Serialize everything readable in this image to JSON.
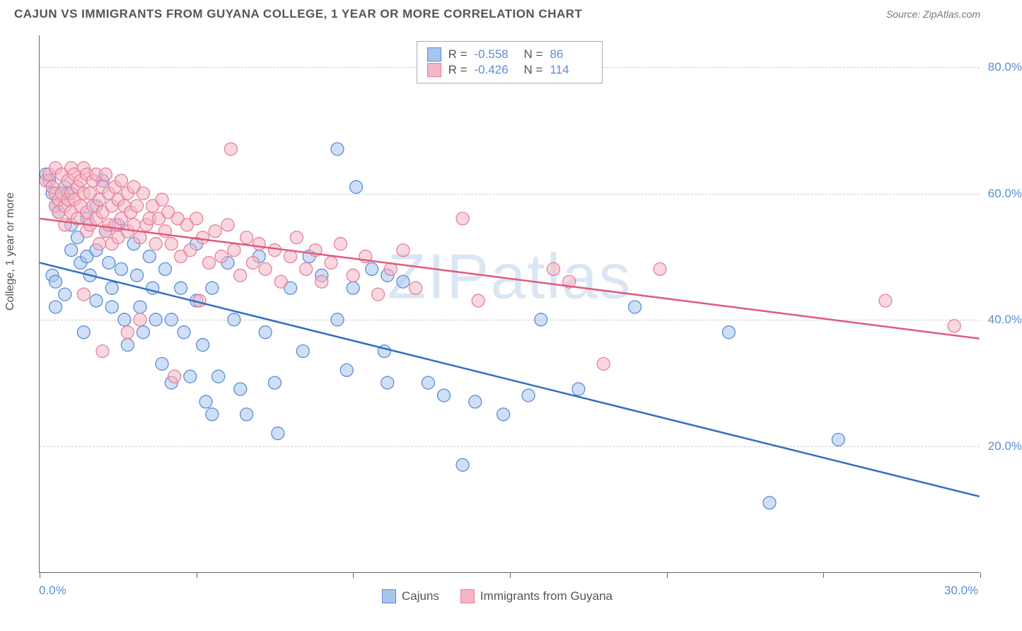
{
  "header": {
    "title": "CAJUN VS IMMIGRANTS FROM GUYANA COLLEGE, 1 YEAR OR MORE CORRELATION CHART",
    "source_prefix": "Source: ",
    "source": "ZipAtlas.com"
  },
  "chart": {
    "type": "scatter",
    "watermark": "ZIPatlas",
    "y_axis_label": "College, 1 year or more",
    "xlim": [
      0,
      30
    ],
    "ylim": [
      0,
      85
    ],
    "x_ticks": [
      0,
      5,
      10,
      15,
      20,
      25,
      30
    ],
    "x_tick_labels": {
      "0": "0.0%",
      "30": "30.0%"
    },
    "y_gridlines": [
      20,
      40,
      60,
      80
    ],
    "y_tick_labels": {
      "20": "20.0%",
      "40": "40.0%",
      "60": "60.0%",
      "80": "80.0%"
    },
    "grid_color": "#cccccc",
    "axis_color": "#666666",
    "background_color": "#ffffff",
    "series": [
      {
        "name": "Cajuns",
        "fill": "#a7c5ec",
        "stroke": "#5b8dd6",
        "fill_opacity": 0.55,
        "marker_radius": 9,
        "trend": {
          "x1": 0,
          "y1": 49,
          "x2": 30,
          "y2": 12,
          "color": "#2f6fc0",
          "width": 2.5
        },
        "R": "-0.558",
        "N": "86",
        "points": [
          [
            0.2,
            63
          ],
          [
            0.3,
            62
          ],
          [
            0.4,
            60
          ],
          [
            0.5,
            58
          ],
          [
            0.6,
            57
          ],
          [
            0.4,
            47
          ],
          [
            0.5,
            46
          ],
          [
            0.5,
            42
          ],
          [
            0.8,
            61
          ],
          [
            0.9,
            60
          ],
          [
            1.0,
            55
          ],
          [
            1.0,
            51
          ],
          [
            0.8,
            44
          ],
          [
            1.2,
            53
          ],
          [
            1.3,
            49
          ],
          [
            1.5,
            56
          ],
          [
            1.5,
            50
          ],
          [
            1.6,
            47
          ],
          [
            1.8,
            58
          ],
          [
            1.8,
            51
          ],
          [
            1.8,
            43
          ],
          [
            1.4,
            38
          ],
          [
            2.0,
            62
          ],
          [
            2.1,
            54
          ],
          [
            2.2,
            49
          ],
          [
            2.3,
            45
          ],
          [
            2.3,
            42
          ],
          [
            2.5,
            55
          ],
          [
            2.6,
            48
          ],
          [
            2.7,
            40
          ],
          [
            2.8,
            36
          ],
          [
            3.0,
            52
          ],
          [
            3.1,
            47
          ],
          [
            3.2,
            42
          ],
          [
            3.3,
            38
          ],
          [
            3.5,
            50
          ],
          [
            3.6,
            45
          ],
          [
            3.7,
            40
          ],
          [
            3.9,
            33
          ],
          [
            4.0,
            48
          ],
          [
            4.2,
            40
          ],
          [
            4.2,
            30
          ],
          [
            4.5,
            45
          ],
          [
            4.6,
            38
          ],
          [
            4.8,
            31
          ],
          [
            5.0,
            52
          ],
          [
            5.0,
            43
          ],
          [
            5.2,
            36
          ],
          [
            5.3,
            27
          ],
          [
            5.5,
            45
          ],
          [
            5.7,
            31
          ],
          [
            5.5,
            25
          ],
          [
            6.0,
            49
          ],
          [
            6.2,
            40
          ],
          [
            6.4,
            29
          ],
          [
            6.6,
            25
          ],
          [
            7.0,
            50
          ],
          [
            7.2,
            38
          ],
          [
            7.5,
            30
          ],
          [
            7.6,
            22
          ],
          [
            8.0,
            45
          ],
          [
            8.4,
            35
          ],
          [
            8.6,
            50
          ],
          [
            9.0,
            47
          ],
          [
            9.5,
            40
          ],
          [
            9.8,
            32
          ],
          [
            10.1,
            61
          ],
          [
            10.0,
            45
          ],
          [
            10.6,
            48
          ],
          [
            11.0,
            35
          ],
          [
            11.1,
            47
          ],
          [
            11.6,
            46
          ],
          [
            11.1,
            30
          ],
          [
            12.4,
            30
          ],
          [
            12.9,
            28
          ],
          [
            13.5,
            17
          ],
          [
            13.9,
            27
          ],
          [
            14.8,
            25
          ],
          [
            15.6,
            28
          ],
          [
            16.0,
            40
          ],
          [
            17.2,
            29
          ],
          [
            19.0,
            42
          ],
          [
            22.0,
            38
          ],
          [
            23.3,
            11
          ],
          [
            25.5,
            21
          ],
          [
            9.5,
            67
          ]
        ]
      },
      {
        "name": "Immigrants from Guyana",
        "fill": "#f4b6c4",
        "stroke": "#e77f9a",
        "fill_opacity": 0.55,
        "marker_radius": 9,
        "trend": {
          "x1": 0,
          "y1": 56,
          "x2": 30,
          "y2": 37,
          "color": "#e05a7d",
          "width": 2.5
        },
        "R": "-0.426",
        "N": "114",
        "points": [
          [
            0.2,
            62
          ],
          [
            0.3,
            63
          ],
          [
            0.4,
            61
          ],
          [
            0.5,
            60
          ],
          [
            0.5,
            58
          ],
          [
            0.5,
            64
          ],
          [
            0.6,
            59
          ],
          [
            0.6,
            57
          ],
          [
            0.7,
            63
          ],
          [
            0.7,
            60
          ],
          [
            0.8,
            58
          ],
          [
            0.8,
            55
          ],
          [
            0.9,
            62
          ],
          [
            0.9,
            59
          ],
          [
            1.0,
            64
          ],
          [
            1.0,
            60
          ],
          [
            1.0,
            57
          ],
          [
            1.1,
            63
          ],
          [
            1.1,
            59
          ],
          [
            1.2,
            61
          ],
          [
            1.2,
            56
          ],
          [
            1.3,
            62
          ],
          [
            1.3,
            58
          ],
          [
            1.4,
            64
          ],
          [
            1.4,
            60
          ],
          [
            1.5,
            63
          ],
          [
            1.5,
            57
          ],
          [
            1.5,
            54
          ],
          [
            1.6,
            60
          ],
          [
            1.6,
            55
          ],
          [
            1.7,
            62
          ],
          [
            1.7,
            58
          ],
          [
            1.8,
            63
          ],
          [
            1.8,
            56
          ],
          [
            1.9,
            59
          ],
          [
            1.9,
            52
          ],
          [
            2.0,
            61
          ],
          [
            2.0,
            57
          ],
          [
            2.1,
            63
          ],
          [
            2.1,
            54
          ],
          [
            2.2,
            60
          ],
          [
            2.2,
            55
          ],
          [
            2.3,
            58
          ],
          [
            2.3,
            52
          ],
          [
            2.4,
            61
          ],
          [
            2.4,
            55
          ],
          [
            2.5,
            59
          ],
          [
            2.5,
            53
          ],
          [
            2.6,
            62
          ],
          [
            2.6,
            56
          ],
          [
            2.7,
            58
          ],
          [
            2.8,
            60
          ],
          [
            2.8,
            54
          ],
          [
            2.9,
            57
          ],
          [
            3.0,
            61
          ],
          [
            3.0,
            55
          ],
          [
            3.1,
            58
          ],
          [
            3.2,
            53
          ],
          [
            3.3,
            60
          ],
          [
            3.4,
            55
          ],
          [
            3.5,
            56
          ],
          [
            3.6,
            58
          ],
          [
            3.7,
            52
          ],
          [
            3.8,
            56
          ],
          [
            3.9,
            59
          ],
          [
            4.0,
            54
          ],
          [
            4.1,
            57
          ],
          [
            4.2,
            52
          ],
          [
            4.4,
            56
          ],
          [
            4.5,
            50
          ],
          [
            4.7,
            55
          ],
          [
            4.8,
            51
          ],
          [
            5.0,
            56
          ],
          [
            5.2,
            53
          ],
          [
            5.4,
            49
          ],
          [
            5.6,
            54
          ],
          [
            5.8,
            50
          ],
          [
            6.0,
            55
          ],
          [
            6.2,
            51
          ],
          [
            6.4,
            47
          ],
          [
            6.1,
            67
          ],
          [
            6.6,
            53
          ],
          [
            6.8,
            49
          ],
          [
            7.0,
            52
          ],
          [
            7.2,
            48
          ],
          [
            7.5,
            51
          ],
          [
            7.7,
            46
          ],
          [
            8.0,
            50
          ],
          [
            8.2,
            53
          ],
          [
            8.5,
            48
          ],
          [
            8.8,
            51
          ],
          [
            9.0,
            46
          ],
          [
            9.3,
            49
          ],
          [
            9.6,
            52
          ],
          [
            10.0,
            47
          ],
          [
            10.4,
            50
          ],
          [
            10.8,
            44
          ],
          [
            11.2,
            48
          ],
          [
            11.6,
            51
          ],
          [
            12.0,
            45
          ],
          [
            13.5,
            56
          ],
          [
            14.0,
            43
          ],
          [
            16.4,
            48
          ],
          [
            16.9,
            46
          ],
          [
            18.0,
            33
          ],
          [
            19.8,
            48
          ],
          [
            27.0,
            43
          ],
          [
            29.2,
            39
          ],
          [
            3.2,
            40
          ],
          [
            2.8,
            38
          ],
          [
            2.0,
            35
          ],
          [
            4.3,
            31
          ],
          [
            1.4,
            44
          ],
          [
            5.1,
            43
          ]
        ]
      }
    ],
    "legend_bottom": [
      {
        "label": "Cajuns",
        "fill": "#a7c5ec",
        "stroke": "#5b8dd6"
      },
      {
        "label": "Immigrants from Guyana",
        "fill": "#f4b6c4",
        "stroke": "#e77f9a"
      }
    ]
  }
}
